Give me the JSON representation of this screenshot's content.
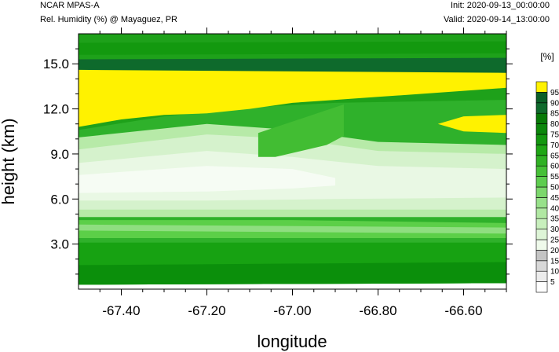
{
  "header": {
    "model": "NCAR MPAS-A",
    "field": "Rel. Humidity (%) @ Mayaguez, PR",
    "init": "Init: 2020-09-13_00:00:00",
    "valid": "Valid: 2020-09-14_13:00:00"
  },
  "chart_data": {
    "type": "filled-contour",
    "xlabel": "longitude",
    "ylabel": "height (km)",
    "xlim": [
      -67.5,
      -66.5
    ],
    "ylim": [
      0,
      17
    ],
    "xticks": [
      -67.4,
      -67.2,
      -67.0,
      -66.8,
      -66.6
    ],
    "xtick_labels": [
      "-67.40",
      "-67.20",
      "-67.00",
      "-66.80",
      "-66.60"
    ],
    "yticks": [
      3,
      6,
      9,
      12,
      15
    ],
    "ytick_labels": [
      "3.0",
      "6.0",
      "9.0",
      "12.0",
      "15.0"
    ],
    "colorbar": {
      "unit": "[%]",
      "levels": [
        "5",
        "10",
        "15",
        "20",
        "25",
        "30",
        "35",
        "40",
        "45",
        "50",
        "55",
        "60",
        "65",
        "70",
        "75",
        "80",
        "85",
        "90",
        "95"
      ],
      "colors": [
        "#ffffff",
        "#ececec",
        "#d8d8d8",
        "#c4c4c4",
        "#effaeb",
        "#def5d7",
        "#c8efbd",
        "#b1e8a3",
        "#98e18a",
        "#7cd76c",
        "#5ecd4f",
        "#46c037",
        "#30b124",
        "#1fa615",
        "#13970f",
        "#0b870b",
        "#077a07",
        "#0f6a2c",
        "#0b5f27",
        "#fff200"
      ]
    },
    "layers": [
      {
        "rh": 62,
        "color": "#2fb12b",
        "base": [
          [
            -67.5,
            0.3
          ],
          [
            -66.5,
            0.4
          ]
        ],
        "top": [
          [
            -67.5,
            17
          ],
          [
            -66.5,
            17
          ]
        ]
      },
      {
        "rh": 72,
        "color": "#17a212",
        "base": [
          [
            -67.5,
            0.3
          ],
          [
            -66.5,
            0.4
          ]
        ],
        "top": [
          [
            -67.5,
            3.1
          ],
          [
            -67.0,
            3.1
          ],
          [
            -66.5,
            3.1
          ]
        ]
      },
      {
        "rh": 82,
        "color": "#0b8f0b",
        "base": [
          [
            -67.5,
            0.3
          ],
          [
            -66.5,
            0.4
          ]
        ],
        "top": [
          [
            -67.5,
            1.6
          ],
          [
            -66.5,
            1.8
          ]
        ]
      },
      {
        "rh": 52,
        "color": "#5ccf48",
        "base": [
          [
            -67.5,
            3.4
          ],
          [
            -66.5,
            3.4
          ]
        ],
        "top": [
          [
            -67.5,
            4.6
          ],
          [
            -67.0,
            4.6
          ],
          [
            -66.5,
            4.4
          ]
        ]
      },
      {
        "rh": 45,
        "color": "#8fde80",
        "base": [
          [
            -67.5,
            3.9
          ],
          [
            -66.5,
            3.7
          ]
        ],
        "top": [
          [
            -67.5,
            4.3
          ],
          [
            -66.5,
            4.1
          ]
        ]
      },
      {
        "rh": 38,
        "color": "#b7eaa8",
        "base": [
          [
            -67.5,
            4.8
          ],
          [
            -66.5,
            4.8
          ]
        ],
        "top": [
          [
            -67.5,
            10.1
          ],
          [
            -67.2,
            11.0
          ],
          [
            -67.0,
            10.6
          ],
          [
            -66.8,
            9.8
          ],
          [
            -66.5,
            9.6
          ]
        ]
      },
      {
        "rh": 28,
        "color": "#d5f2cc",
        "base": [
          [
            -67.5,
            5.3
          ],
          [
            -66.5,
            5.3
          ]
        ],
        "top": [
          [
            -67.5,
            9.3
          ],
          [
            -67.2,
            10.3
          ],
          [
            -67.0,
            10.0
          ],
          [
            -66.8,
            9.2
          ],
          [
            -66.5,
            9.0
          ]
        ]
      },
      {
        "rh": 22,
        "color": "#e9f8e4",
        "base": [
          [
            -67.5,
            5.9
          ],
          [
            -67.2,
            5.9
          ],
          [
            -66.9,
            6.0
          ],
          [
            -66.5,
            6.1
          ]
        ],
        "top": [
          [
            -67.5,
            8.4
          ],
          [
            -67.2,
            9.2
          ],
          [
            -67.0,
            8.8
          ],
          [
            -66.8,
            8.2
          ],
          [
            -66.5,
            8.0
          ]
        ]
      },
      {
        "rh": 18,
        "color": "#f6fcf4",
        "base": [
          [
            -67.5,
            6.4
          ],
          [
            -67.2,
            6.5
          ],
          [
            -67.0,
            6.7
          ],
          [
            -66.9,
            6.9
          ]
        ],
        "top": [
          [
            -67.5,
            7.6
          ],
          [
            -67.2,
            8.2
          ],
          [
            -67.0,
            8.0
          ],
          [
            -66.9,
            7.4
          ]
        ]
      },
      {
        "rh": 68,
        "color": "#1ea11a",
        "base": [
          [
            -67.5,
            10.6
          ],
          [
            -67.3,
            11.5
          ],
          [
            -67.1,
            12.1
          ],
          [
            -66.9,
            12.4
          ],
          [
            -66.5,
            12.6
          ]
        ],
        "top": [
          [
            -67.5,
            17
          ],
          [
            -66.5,
            17
          ]
        ]
      },
      {
        "rh": 60,
        "color": "#42bd33",
        "base": [
          [
            -67.08,
            8.8
          ],
          [
            -67.04,
            8.8
          ],
          [
            -66.92,
            9.6
          ],
          [
            -66.88,
            10.2
          ]
        ],
        "top": [
          [
            -67.08,
            10.4
          ],
          [
            -66.88,
            12.3
          ]
        ]
      },
      {
        "rh": 92,
        "color": "#0e6a2c",
        "base": [
          [
            -67.5,
            14.2
          ],
          [
            -66.5,
            14.4
          ]
        ],
        "top": [
          [
            -67.5,
            15.3
          ],
          [
            -66.5,
            15.4
          ]
        ]
      },
      {
        "rh": 96,
        "color": "#fff200",
        "base": [
          [
            -67.5,
            10.8
          ],
          [
            -67.4,
            11.3
          ],
          [
            -67.3,
            11.6
          ],
          [
            -67.2,
            11.7
          ],
          [
            -67.1,
            12.0
          ],
          [
            -67.0,
            12.4
          ],
          [
            -66.9,
            12.6
          ],
          [
            -66.8,
            12.8
          ],
          [
            -66.7,
            13.0
          ],
          [
            -66.6,
            13.2
          ],
          [
            -66.5,
            13.4
          ]
        ],
        "top": [
          [
            -67.5,
            14.6
          ],
          [
            -66.5,
            14.4
          ]
        ]
      },
      {
        "rh": 96,
        "color": "#fff200",
        "base": [
          [
            -66.66,
            11.0
          ],
          [
            -66.6,
            10.5
          ],
          [
            -66.5,
            10.4
          ]
        ],
        "top": [
          [
            -66.66,
            11.0
          ],
          [
            -66.6,
            11.5
          ],
          [
            -66.5,
            11.6
          ]
        ]
      },
      {
        "rh": 78,
        "color": "#13990f",
        "base": [
          [
            -67.5,
            15.6
          ],
          [
            -66.5,
            15.7
          ]
        ],
        "top": [
          [
            -67.5,
            16.4
          ],
          [
            -66.5,
            16.5
          ]
        ]
      }
    ]
  }
}
